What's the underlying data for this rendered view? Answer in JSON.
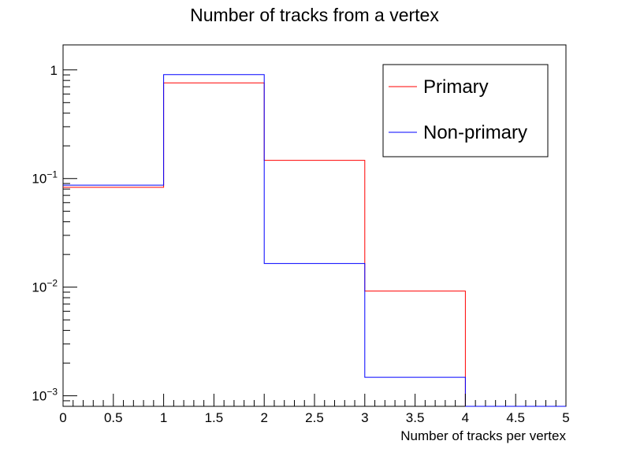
{
  "chart_data": {
    "type": "histogram",
    "title": "Number of tracks from a vertex",
    "xlabel": "Number of tracks per vertex",
    "ylabel": "",
    "xlim": [
      0,
      5
    ],
    "ylim": [
      0.0008,
      1.7
    ],
    "y_scale": "log",
    "grid": false,
    "legend_position": "top-right",
    "bin_edges": [
      0,
      1,
      2,
      3,
      4,
      5
    ],
    "series": [
      {
        "name": "Primary",
        "color": "#ff0000",
        "values": [
          0.083,
          0.76,
          0.147,
          0.0092,
          0
        ]
      },
      {
        "name": "Non-primary",
        "color": "#0000ff",
        "values": [
          0.087,
          0.905,
          0.0165,
          0.00148,
          0
        ]
      }
    ],
    "x_ticks": [
      "0",
      "0.5",
      "1",
      "1.5",
      "2",
      "2.5",
      "3",
      "3.5",
      "4",
      "4.5",
      "5"
    ],
    "y_ticks": [
      {
        "value": 1,
        "base": "1",
        "exp": ""
      },
      {
        "value": 0.1,
        "base": "10",
        "exp": "−1"
      },
      {
        "value": 0.01,
        "base": "10",
        "exp": "−2"
      },
      {
        "value": 0.001,
        "base": "10",
        "exp": "−3"
      }
    ]
  }
}
